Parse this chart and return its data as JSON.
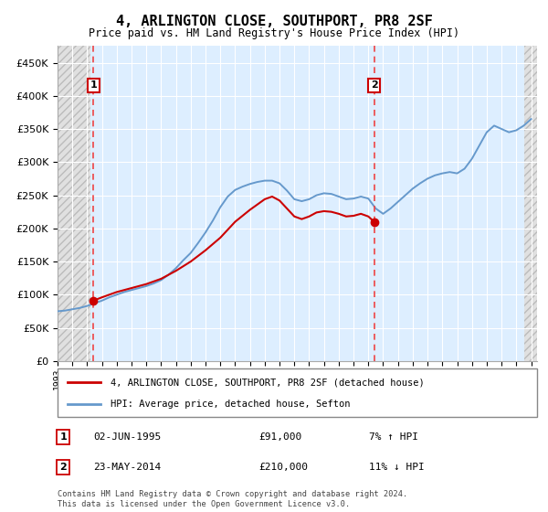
{
  "title": "4, ARLINGTON CLOSE, SOUTHPORT, PR8 2SF",
  "subtitle": "Price paid vs. HM Land Registry's House Price Index (HPI)",
  "legend_line1": "4, ARLINGTON CLOSE, SOUTHPORT, PR8 2SF (detached house)",
  "legend_line2": "HPI: Average price, detached house, Sefton",
  "ann1_label": "1",
  "ann1_date": "02-JUN-1995",
  "ann1_price": "£91,000",
  "ann1_hpi": "7% ↑ HPI",
  "ann2_label": "2",
  "ann2_date": "23-MAY-2014",
  "ann2_price": "£210,000",
  "ann2_hpi": "11% ↓ HPI",
  "footer": "Contains HM Land Registry data © Crown copyright and database right 2024.\nThis data is licensed under the Open Government Licence v3.0.",
  "hpi_color": "#6699cc",
  "price_color": "#cc0000",
  "vline_color": "#ee4444",
  "marker_color": "#cc0000",
  "box_color": "#cc0000",
  "ylim": [
    0,
    475000
  ],
  "yticks": [
    0,
    50000,
    100000,
    150000,
    200000,
    250000,
    300000,
    350000,
    400000,
    450000
  ],
  "ytick_labels": [
    "£0",
    "£50K",
    "£100K",
    "£150K",
    "£200K",
    "£250K",
    "£300K",
    "£350K",
    "£400K",
    "£450K"
  ],
  "sale1_x": 1995.42,
  "sale1_y": 91000,
  "sale2_x": 2014.39,
  "sale2_y": 210000,
  "hpi_x": [
    1993.0,
    1993.5,
    1994.0,
    1994.5,
    1995.0,
    1995.5,
    1996.0,
    1996.5,
    1997.0,
    1997.5,
    1998.0,
    1998.5,
    1999.0,
    1999.5,
    2000.0,
    2000.5,
    2001.0,
    2001.5,
    2002.0,
    2002.5,
    2003.0,
    2003.5,
    2004.0,
    2004.5,
    2005.0,
    2005.5,
    2006.0,
    2006.5,
    2007.0,
    2007.5,
    2008.0,
    2008.5,
    2009.0,
    2009.5,
    2010.0,
    2010.5,
    2011.0,
    2011.5,
    2012.0,
    2012.5,
    2013.0,
    2013.5,
    2014.0,
    2014.5,
    2015.0,
    2015.5,
    2016.0,
    2016.5,
    2017.0,
    2017.5,
    2018.0,
    2018.5,
    2019.0,
    2019.5,
    2020.0,
    2020.5,
    2021.0,
    2021.5,
    2022.0,
    2022.5,
    2023.0,
    2023.5,
    2024.0,
    2024.5,
    2025.0
  ],
  "hpi_y": [
    75000,
    76000,
    78000,
    80000,
    83000,
    87000,
    91000,
    96000,
    100000,
    104000,
    107000,
    110000,
    113000,
    117000,
    122000,
    130000,
    140000,
    152000,
    163000,
    178000,
    194000,
    212000,
    232000,
    248000,
    258000,
    263000,
    267000,
    270000,
    272000,
    272000,
    268000,
    257000,
    244000,
    241000,
    244000,
    250000,
    253000,
    252000,
    248000,
    244000,
    245000,
    248000,
    245000,
    230000,
    222000,
    230000,
    240000,
    250000,
    260000,
    268000,
    275000,
    280000,
    283000,
    285000,
    283000,
    290000,
    305000,
    325000,
    345000,
    355000,
    350000,
    345000,
    348000,
    355000,
    365000
  ],
  "price_x": [
    1995.42,
    1996.0,
    1997.0,
    1998.0,
    1999.0,
    2000.0,
    2001.0,
    2002.0,
    2003.0,
    2004.0,
    2005.0,
    2006.0,
    2007.0,
    2007.5,
    2008.0,
    2008.5,
    2009.0,
    2009.5,
    2010.0,
    2010.5,
    2011.0,
    2011.5,
    2012.0,
    2012.5,
    2013.0,
    2013.5,
    2014.0,
    2014.39
  ],
  "price_y": [
    91000,
    96000,
    104000,
    110000,
    116000,
    124000,
    136000,
    150000,
    167000,
    186000,
    210000,
    228000,
    244000,
    248000,
    242000,
    230000,
    218000,
    214000,
    218000,
    224000,
    226000,
    225000,
    222000,
    218000,
    219000,
    222000,
    218000,
    210000
  ],
  "xlim_left": 1993.0,
  "xlim_right": 2025.4,
  "hatch_left_end": 1995.25,
  "hatch_right_start": 2024.55
}
